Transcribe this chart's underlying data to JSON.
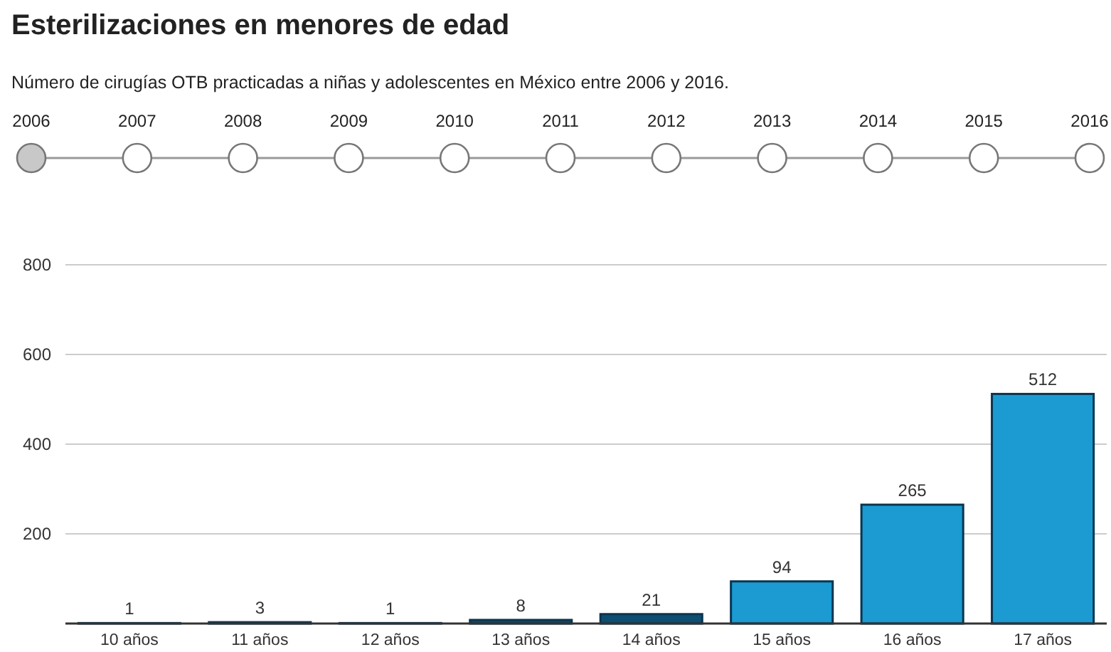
{
  "chart_data": {
    "type": "bar",
    "title": "Esterilizaciones en menores de edad",
    "subtitle": "Número de cirugías OTB practicadas a niñas y adolescentes en México entre 2006 y 2016.",
    "annotations": [
      "2006",
      "2007",
      "2008",
      "2009",
      "2010",
      "2011",
      "2012",
      "2013",
      "2014",
      "2015",
      "2016"
    ],
    "categories": [
      "10 años",
      "11 años",
      "12 años",
      "13 años",
      "14 años",
      "15 años",
      "16 años",
      "17 años"
    ],
    "values": [
      1,
      3,
      1,
      8,
      21,
      94,
      265,
      512
    ],
    "colors": [
      "#0d4a68",
      "#0d4a68",
      "#0d4a68",
      "#0d4a68",
      "#0d4f72",
      "#1b9bd1",
      "#1b9bd1",
      "#1b9bd1"
    ],
    "ylim": [
      0,
      800
    ],
    "yticks": [
      200,
      400,
      600,
      800
    ],
    "grid": "y",
    "data_labels": true
  }
}
